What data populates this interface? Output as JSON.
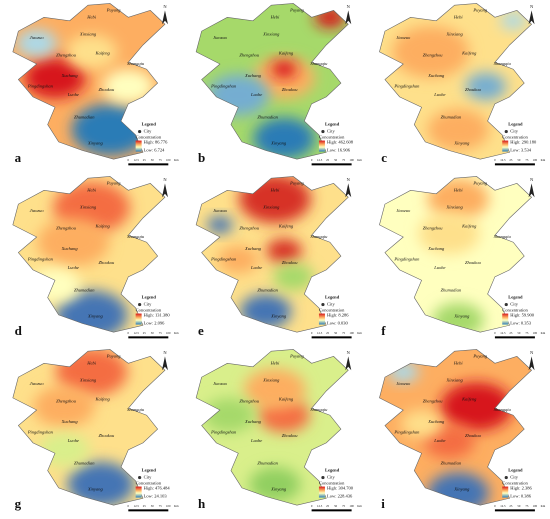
{
  "north": "N",
  "scale_labels": [
    "0",
    "12.5",
    "25",
    "50",
    "75",
    "100",
    "Km"
  ],
  "cities": [
    "Hebi",
    "Puyang",
    "Jiaozuo",
    "Xinxiang",
    "Zhengzhou",
    "Kaifeng",
    "Shangqiu",
    "Xuchang",
    "Pingdingshan",
    "Luohe",
    "Zhoukou",
    "Zhumadian",
    "Xinyang"
  ],
  "panels": [
    {
      "letter": "a",
      "legend": {
        "title": "Legend",
        "city": "City",
        "concentration": "Concentration",
        "high": "High: 86.776",
        "low": "Low: 6.724"
      }
    },
    {
      "letter": "b",
      "legend": {
        "title": "Legend",
        "city": "City",
        "concentration": "Concentration",
        "high": "High: 462.608",
        "low": "Low: 16.906"
      }
    },
    {
      "letter": "c",
      "legend": {
        "title": "Legend",
        "city": "City",
        "concentration": "Concentration",
        "high": "High: 290.180",
        "low": "Low: 3.534"
      }
    },
    {
      "letter": "d",
      "legend": {
        "title": "Legend",
        "city": "City",
        "concentration": "Concentration",
        "high": "High: 131.380",
        "low": "Low: 2.096"
      }
    },
    {
      "letter": "e",
      "legend": {
        "title": "Legend",
        "city": "City",
        "concentration": "Concentration",
        "high": "High: 8.286",
        "low": "Low: 0.030"
      }
    },
    {
      "letter": "f",
      "legend": {
        "title": "Legend",
        "city": "City",
        "concentration": "Concentration",
        "high": "High: 59.900",
        "low": "Low: 0.353"
      }
    },
    {
      "letter": "g",
      "legend": {
        "title": "Legend",
        "city": "City",
        "concentration": "Concentration",
        "high": "High: 476.484",
        "low": "Low: 24.103"
      }
    },
    {
      "letter": "h",
      "legend": {
        "title": "Legend",
        "city": "City",
        "concentration": "Concentration",
        "high": "High: 304.700",
        "low": "Low: 228.436"
      }
    },
    {
      "letter": "i",
      "legend": {
        "title": "Legend",
        "city": "City",
        "concentration": "Concentration",
        "high": "High: 2.386",
        "low": "Low: 0.386"
      }
    }
  ]
}
